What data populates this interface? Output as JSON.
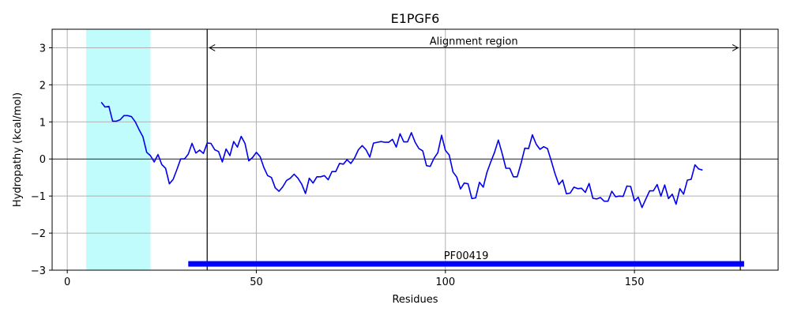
{
  "chart_data": {
    "type": "line",
    "title": "E1PGF6",
    "xlabel": "Residues",
    "ylabel": "Hydropathy (kcal/mol)",
    "xlim": [
      -4,
      188
    ],
    "ylim": [
      -3,
      3.5
    ],
    "xticks": [
      0,
      50,
      100,
      150
    ],
    "yticks": [
      -3,
      -2,
      -1,
      0,
      1,
      2,
      3
    ],
    "grid": true,
    "colors": {
      "line": "#0000ee",
      "highlight": "#c0fcfc",
      "domain_bar": "#0000ff",
      "zero_line": "#000000",
      "grid": "#b0b0b0"
    },
    "highlight_region": {
      "x": [
        5,
        22
      ]
    },
    "alignment_region": {
      "label": "Alignment region",
      "x": [
        37,
        178
      ],
      "y": 3.0
    },
    "domain": {
      "label": "PF00419",
      "x": [
        32,
        179
      ],
      "y": -2.83
    },
    "series": [
      {
        "x": [
          9,
          10,
          11,
          12,
          13,
          14,
          15,
          16,
          17,
          18,
          19,
          20,
          21,
          22,
          23,
          24,
          25,
          26,
          27,
          28,
          29,
          30,
          31,
          32,
          33,
          34,
          35,
          36,
          37,
          38,
          39,
          40,
          41,
          42,
          43,
          44,
          45,
          46,
          47,
          48,
          49,
          50,
          51,
          52,
          53,
          54,
          55,
          56,
          57,
          58,
          59,
          60,
          61,
          62,
          63,
          64,
          65,
          66,
          67,
          68,
          69,
          70,
          71,
          72,
          73,
          74,
          75,
          76,
          77,
          78,
          79,
          80,
          81,
          82,
          83,
          84,
          85,
          86,
          87,
          88,
          89,
          90,
          91,
          92,
          93,
          94,
          95,
          96,
          97,
          98,
          99,
          100,
          101,
          102,
          103,
          104,
          105,
          106,
          107,
          108,
          109,
          110,
          111,
          112,
          113,
          114,
          115,
          116,
          117,
          118,
          119,
          120,
          121,
          122,
          123,
          124,
          125,
          126,
          127,
          128,
          129,
          130,
          131,
          132,
          133,
          134,
          135,
          136,
          137,
          138,
          139,
          140,
          141,
          142,
          143,
          144,
          145,
          146,
          147,
          148,
          149,
          150,
          151,
          152,
          153,
          154,
          155,
          156,
          157,
          158,
          159,
          160,
          161,
          162,
          163,
          164,
          165,
          166,
          167,
          168
        ],
        "values": [
          1.53,
          1.4,
          1.42,
          1.02,
          1.02,
          1.06,
          1.17,
          1.17,
          1.14,
          1.0,
          0.79,
          0.6,
          0.18,
          0.09,
          -0.08,
          0.12,
          -0.15,
          -0.25,
          -0.67,
          -0.55,
          -0.28,
          0.0,
          0.0,
          0.13,
          0.42,
          0.16,
          0.24,
          0.15,
          0.43,
          0.42,
          0.25,
          0.2,
          -0.08,
          0.27,
          0.09,
          0.47,
          0.32,
          0.61,
          0.42,
          -0.05,
          0.04,
          0.18,
          0.06,
          -0.23,
          -0.45,
          -0.5,
          -0.78,
          -0.87,
          -0.75,
          -0.58,
          -0.52,
          -0.41,
          -0.52,
          -0.68,
          -0.93,
          -0.52,
          -0.65,
          -0.48,
          -0.48,
          -0.45,
          -0.56,
          -0.34,
          -0.34,
          -0.12,
          -0.14,
          -0.02,
          -0.12,
          0.03,
          0.25,
          0.36,
          0.25,
          0.05,
          0.43,
          0.45,
          0.47,
          0.45,
          0.45,
          0.53,
          0.32,
          0.68,
          0.46,
          0.46,
          0.71,
          0.45,
          0.28,
          0.22,
          -0.18,
          -0.2,
          0.02,
          0.17,
          0.64,
          0.23,
          0.11,
          -0.35,
          -0.49,
          -0.81,
          -0.65,
          -0.67,
          -1.07,
          -1.05,
          -0.63,
          -0.76,
          -0.36,
          -0.08,
          0.18,
          0.51,
          0.15,
          -0.25,
          -0.25,
          -0.48,
          -0.48,
          -0.12,
          0.29,
          0.28,
          0.65,
          0.4,
          0.26,
          0.33,
          0.28,
          -0.05,
          -0.4,
          -0.69,
          -0.57,
          -0.94,
          -0.92,
          -0.76,
          -0.8,
          -0.79,
          -0.9,
          -0.66,
          -1.06,
          -1.08,
          -1.04,
          -1.14,
          -1.14,
          -0.87,
          -1.02,
          -1.0,
          -1.01,
          -0.73,
          -0.74,
          -1.13,
          -1.03,
          -1.31,
          -1.08,
          -0.86,
          -0.86,
          -0.69,
          -1.0,
          -0.7,
          -1.07,
          -0.95,
          -1.22,
          -0.8,
          -0.95,
          -0.57,
          -0.55,
          -0.16,
          -0.27,
          -0.3
        ]
      }
    ]
  }
}
